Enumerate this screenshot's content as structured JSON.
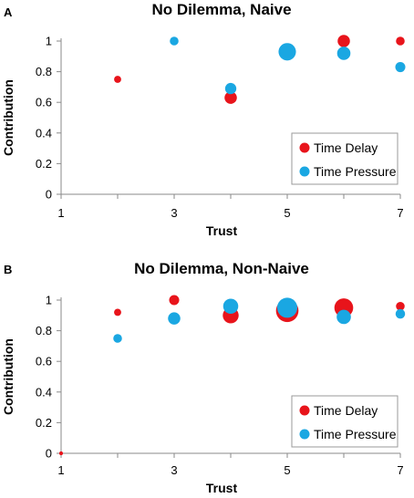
{
  "colors": {
    "time_delay": "#e8141b",
    "time_pressure": "#1aa7e2",
    "axis": "#8a8a8a"
  },
  "chart_data": [
    {
      "panel": "A",
      "type": "scatter",
      "title": "No Dilemma, Naive",
      "xlabel": "Trust",
      "ylabel": "Contribution",
      "xlim": [
        1,
        7
      ],
      "ylim": [
        0,
        1
      ],
      "xticks": [
        "1",
        "3",
        "5",
        "7"
      ],
      "yticks": [
        "0",
        "0.2",
        "0.4",
        "0.6",
        "0.8",
        "1"
      ],
      "legend_position": "bottom-right",
      "grid": false,
      "series": [
        {
          "name": "Time Delay",
          "color": "#e8141b",
          "points": [
            {
              "x": 2,
              "y": 0.75,
              "size": 1
            },
            {
              "x": 4,
              "y": 0.63,
              "size": 3
            },
            {
              "x": 6,
              "y": 1.0,
              "size": 3
            },
            {
              "x": 7,
              "y": 1.0,
              "size": 1.5
            }
          ]
        },
        {
          "name": "Time Pressure",
          "color": "#1aa7e2",
          "points": [
            {
              "x": 3,
              "y": 1.0,
              "size": 1.5
            },
            {
              "x": 4,
              "y": 0.69,
              "size": 2.5
            },
            {
              "x": 5,
              "y": 0.93,
              "size": 6
            },
            {
              "x": 6,
              "y": 0.92,
              "size": 3.5
            },
            {
              "x": 7,
              "y": 0.83,
              "size": 2
            }
          ]
        }
      ]
    },
    {
      "panel": "B",
      "type": "scatter",
      "title": "No Dilemma, Non-Naive",
      "xlabel": "Trust",
      "ylabel": "Contribution",
      "xlim": [
        1,
        7
      ],
      "ylim": [
        0,
        1
      ],
      "xticks": [
        "1",
        "3",
        "5",
        "7"
      ],
      "yticks": [
        "0",
        "0.2",
        "0.4",
        "0.6",
        "0.8",
        "1"
      ],
      "legend_position": "bottom-right",
      "grid": false,
      "series": [
        {
          "name": "Time Delay",
          "color": "#e8141b",
          "points": [
            {
              "x": 1,
              "y": 0.0,
              "size": 0.3
            },
            {
              "x": 2,
              "y": 0.92,
              "size": 1
            },
            {
              "x": 3,
              "y": 1.0,
              "size": 2
            },
            {
              "x": 4,
              "y": 0.9,
              "size": 5
            },
            {
              "x": 5,
              "y": 0.93,
              "size": 10
            },
            {
              "x": 6,
              "y": 0.95,
              "size": 7
            },
            {
              "x": 7,
              "y": 0.96,
              "size": 1.5
            }
          ]
        },
        {
          "name": "Time Pressure",
          "color": "#1aa7e2",
          "points": [
            {
              "x": 2,
              "y": 0.75,
              "size": 1.5
            },
            {
              "x": 3,
              "y": 0.88,
              "size": 3
            },
            {
              "x": 4,
              "y": 0.96,
              "size": 4.5
            },
            {
              "x": 5,
              "y": 0.95,
              "size": 8
            },
            {
              "x": 6,
              "y": 0.89,
              "size": 4
            },
            {
              "x": 7,
              "y": 0.91,
              "size": 1.8
            }
          ]
        }
      ]
    }
  ]
}
